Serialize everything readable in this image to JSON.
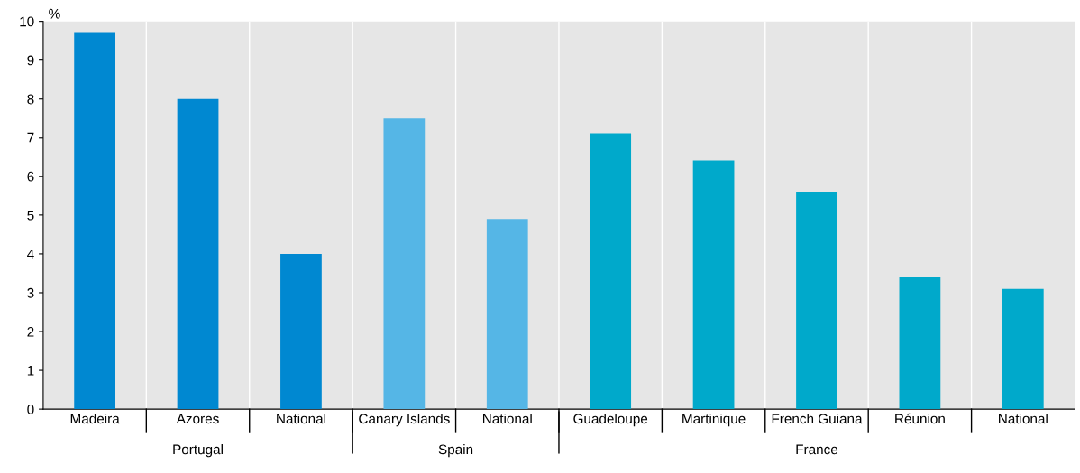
{
  "chart_data": {
    "type": "bar",
    "ylabel": "%",
    "categories": [
      "Madeira",
      "Azores",
      "National",
      "Canary Islands",
      "National",
      "Guadeloupe",
      "Martinique",
      "French Guiana",
      "Réunion",
      "National"
    ],
    "values": [
      9.7,
      8.0,
      4.0,
      7.5,
      4.9,
      7.1,
      6.4,
      5.6,
      3.4,
      3.1
    ],
    "colors": [
      "#0088d1",
      "#0088d1",
      "#0088d1",
      "#55b6e6",
      "#55b6e6",
      "#00a9cb",
      "#00a9cb",
      "#00a9cb",
      "#00a9cb",
      "#00a9cb"
    ],
    "ylim": [
      0,
      10
    ],
    "yticks": [
      0,
      1,
      2,
      3,
      4,
      5,
      6,
      7,
      8,
      9,
      10
    ],
    "annotations": [
      "Portugal",
      "Spain",
      "France"
    ],
    "grid": false,
    "legend": false
  }
}
